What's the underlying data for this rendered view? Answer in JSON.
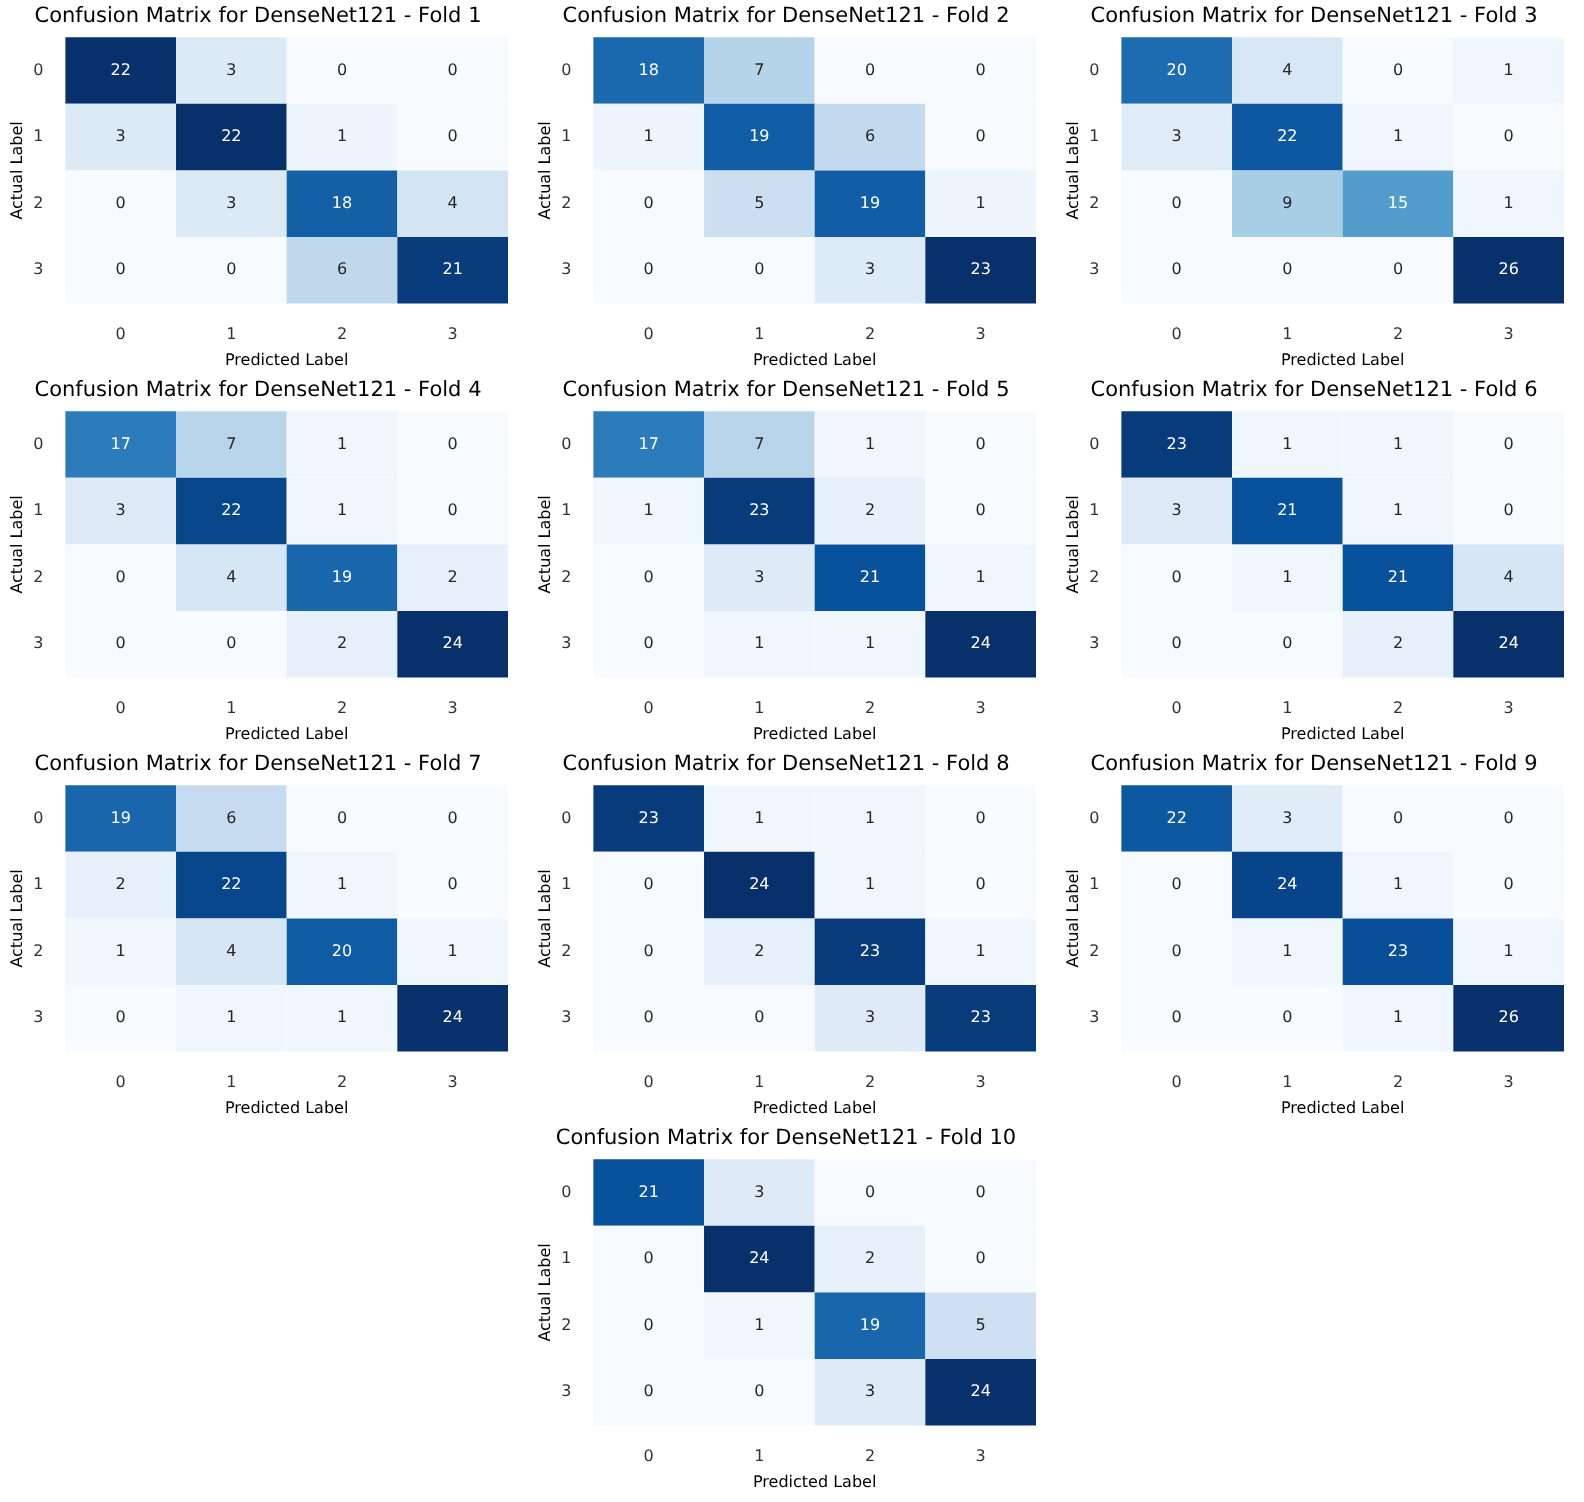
{
  "chart_data": [
    {
      "type": "heatmap",
      "title": "Confusion Matrix for DenseNet121 - Fold 1",
      "xlabel": "Predicted Label",
      "ylabel": "Actual Label",
      "categories": [
        "0",
        "1",
        "2",
        "3"
      ],
      "y_categories": [
        "0",
        "1",
        "2",
        "3"
      ],
      "data_labels": true,
      "cells": [
        [
          22,
          3,
          0,
          0
        ],
        [
          3,
          22,
          1,
          0
        ],
        [
          0,
          3,
          18,
          4
        ],
        [
          0,
          0,
          6,
          21
        ]
      ]
    },
    {
      "type": "heatmap",
      "title": "Confusion Matrix for DenseNet121 - Fold 2",
      "xlabel": "Predicted Label",
      "ylabel": "Actual Label",
      "categories": [
        "0",
        "1",
        "2",
        "3"
      ],
      "y_categories": [
        "0",
        "1",
        "2",
        "3"
      ],
      "data_labels": true,
      "cells": [
        [
          18,
          7,
          0,
          0
        ],
        [
          1,
          19,
          6,
          0
        ],
        [
          0,
          5,
          19,
          1
        ],
        [
          0,
          0,
          3,
          23
        ]
      ]
    },
    {
      "type": "heatmap",
      "title": "Confusion Matrix for DenseNet121 - Fold 3",
      "xlabel": "Predicted Label",
      "ylabel": "Actual Label",
      "categories": [
        "0",
        "1",
        "2",
        "3"
      ],
      "y_categories": [
        "0",
        "1",
        "2",
        "3"
      ],
      "data_labels": true,
      "cells": [
        [
          20,
          4,
          0,
          1
        ],
        [
          3,
          22,
          1,
          0
        ],
        [
          0,
          9,
          15,
          1
        ],
        [
          0,
          0,
          0,
          26
        ]
      ]
    },
    {
      "type": "heatmap",
      "title": "Confusion Matrix for DenseNet121 - Fold 4",
      "xlabel": "Predicted Label",
      "ylabel": "Actual Label",
      "categories": [
        "0",
        "1",
        "2",
        "3"
      ],
      "y_categories": [
        "0",
        "1",
        "2",
        "3"
      ],
      "data_labels": true,
      "cells": [
        [
          17,
          7,
          1,
          0
        ],
        [
          3,
          22,
          1,
          0
        ],
        [
          0,
          4,
          19,
          2
        ],
        [
          0,
          0,
          2,
          24
        ]
      ]
    },
    {
      "type": "heatmap",
      "title": "Confusion Matrix for DenseNet121 - Fold 5",
      "xlabel": "Predicted Label",
      "ylabel": "Actual Label",
      "categories": [
        "0",
        "1",
        "2",
        "3"
      ],
      "y_categories": [
        "0",
        "1",
        "2",
        "3"
      ],
      "data_labels": true,
      "cells": [
        [
          17,
          7,
          1,
          0
        ],
        [
          1,
          23,
          2,
          0
        ],
        [
          0,
          3,
          21,
          1
        ],
        [
          0,
          1,
          1,
          24
        ]
      ]
    },
    {
      "type": "heatmap",
      "title": "Confusion Matrix for DenseNet121 - Fold 6",
      "xlabel": "Predicted Label",
      "ylabel": "Actual Label",
      "categories": [
        "0",
        "1",
        "2",
        "3"
      ],
      "y_categories": [
        "0",
        "1",
        "2",
        "3"
      ],
      "data_labels": true,
      "cells": [
        [
          23,
          1,
          1,
          0
        ],
        [
          3,
          21,
          1,
          0
        ],
        [
          0,
          1,
          21,
          4
        ],
        [
          0,
          0,
          2,
          24
        ]
      ]
    },
    {
      "type": "heatmap",
      "title": "Confusion Matrix for DenseNet121 - Fold 7",
      "xlabel": "Predicted Label",
      "ylabel": "Actual Label",
      "categories": [
        "0",
        "1",
        "2",
        "3"
      ],
      "y_categories": [
        "0",
        "1",
        "2",
        "3"
      ],
      "data_labels": true,
      "cells": [
        [
          19,
          6,
          0,
          0
        ],
        [
          2,
          22,
          1,
          0
        ],
        [
          1,
          4,
          20,
          1
        ],
        [
          0,
          1,
          1,
          24
        ]
      ]
    },
    {
      "type": "heatmap",
      "title": "Confusion Matrix for DenseNet121 - Fold 8",
      "xlabel": "Predicted Label",
      "ylabel": "Actual Label",
      "categories": [
        "0",
        "1",
        "2",
        "3"
      ],
      "y_categories": [
        "0",
        "1",
        "2",
        "3"
      ],
      "data_labels": true,
      "cells": [
        [
          23,
          1,
          1,
          0
        ],
        [
          0,
          24,
          1,
          0
        ],
        [
          0,
          2,
          23,
          1
        ],
        [
          0,
          0,
          3,
          23
        ]
      ]
    },
    {
      "type": "heatmap",
      "title": "Confusion Matrix for DenseNet121 - Fold 9",
      "xlabel": "Predicted Label",
      "ylabel": "Actual Label",
      "categories": [
        "0",
        "1",
        "2",
        "3"
      ],
      "y_categories": [
        "0",
        "1",
        "2",
        "3"
      ],
      "data_labels": true,
      "cells": [
        [
          22,
          3,
          0,
          0
        ],
        [
          0,
          24,
          1,
          0
        ],
        [
          0,
          1,
          23,
          1
        ],
        [
          0,
          0,
          1,
          26
        ]
      ]
    },
    {
      "type": "heatmap",
      "title": "Confusion Matrix for DenseNet121 - Fold 10",
      "xlabel": "Predicted Label",
      "ylabel": "Actual Label",
      "categories": [
        "0",
        "1",
        "2",
        "3"
      ],
      "y_categories": [
        "0",
        "1",
        "2",
        "3"
      ],
      "data_labels": true,
      "cells": [
        [
          21,
          3,
          0,
          0
        ],
        [
          0,
          24,
          2,
          0
        ],
        [
          0,
          1,
          19,
          5
        ],
        [
          0,
          0,
          3,
          24
        ]
      ]
    }
  ]
}
